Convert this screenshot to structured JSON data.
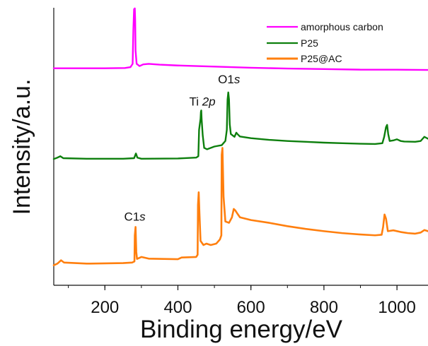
{
  "chart_data": {
    "type": "line",
    "title": "",
    "xlabel": "Binding energy/eV",
    "ylabel": "Intensity/a.u.",
    "xlim": [
      60,
      1085
    ],
    "ylim": [
      0,
      10
    ],
    "grid": false,
    "legend_position": "top-right",
    "x_ticks": [
      200,
      400,
      600,
      800,
      1000
    ],
    "x_tick_labels": [
      "200",
      "400",
      "600",
      "800",
      "1000"
    ],
    "series": [
      {
        "name": "amorphous carbon",
        "color": "#ff00ff",
        "points": [
          [
            60,
            7.82
          ],
          [
            200,
            7.82
          ],
          [
            255,
            7.83
          ],
          [
            270,
            7.86
          ],
          [
            276,
            7.98
          ],
          [
            278,
            9.2
          ],
          [
            280,
            9.95
          ],
          [
            281,
            9.72
          ],
          [
            282,
            9.98
          ],
          [
            283,
            9.55
          ],
          [
            284,
            8.45
          ],
          [
            287,
            7.98
          ],
          [
            295,
            7.9
          ],
          [
            305,
            7.96
          ],
          [
            320,
            7.98
          ],
          [
            350,
            7.95
          ],
          [
            400,
            7.92
          ],
          [
            500,
            7.88
          ],
          [
            600,
            7.84
          ],
          [
            700,
            7.81
          ],
          [
            800,
            7.79
          ],
          [
            900,
            7.77
          ],
          [
            1000,
            7.77
          ],
          [
            1085,
            7.76
          ]
        ]
      },
      {
        "name": "P25",
        "color": "#0d7f0d",
        "points": [
          [
            60,
            4.55
          ],
          [
            70,
            4.6
          ],
          [
            78,
            4.65
          ],
          [
            86,
            4.58
          ],
          [
            150,
            4.56
          ],
          [
            250,
            4.56
          ],
          [
            280,
            4.58
          ],
          [
            285,
            4.75
          ],
          [
            289,
            4.6
          ],
          [
            300,
            4.56
          ],
          [
            400,
            4.57
          ],
          [
            450,
            4.6
          ],
          [
            456,
            4.65
          ],
          [
            458,
            5.6
          ],
          [
            459,
            5.7
          ],
          [
            462,
            6.0
          ],
          [
            463,
            6.25
          ],
          [
            464,
            6.3
          ],
          [
            465,
            5.98
          ],
          [
            468,
            5.4
          ],
          [
            472,
            4.95
          ],
          [
            480,
            4.9
          ],
          [
            500,
            5.0
          ],
          [
            520,
            5.05
          ],
          [
            530,
            5.2
          ],
          [
            534,
            5.6
          ],
          [
            536,
            6.7
          ],
          [
            538,
            6.95
          ],
          [
            540,
            6.7
          ],
          [
            542,
            5.8
          ],
          [
            545,
            5.45
          ],
          [
            555,
            5.35
          ],
          [
            560,
            5.5
          ],
          [
            563,
            5.45
          ],
          [
            570,
            5.36
          ],
          [
            600,
            5.3
          ],
          [
            650,
            5.24
          ],
          [
            700,
            5.2
          ],
          [
            750,
            5.17
          ],
          [
            800,
            5.14
          ],
          [
            850,
            5.12
          ],
          [
            900,
            5.1
          ],
          [
            940,
            5.09
          ],
          [
            960,
            5.12
          ],
          [
            965,
            5.35
          ],
          [
            970,
            5.7
          ],
          [
            973,
            5.78
          ],
          [
            976,
            5.45
          ],
          [
            980,
            5.2
          ],
          [
            990,
            5.22
          ],
          [
            1000,
            5.26
          ],
          [
            1010,
            5.2
          ],
          [
            1020,
            5.18
          ],
          [
            1050,
            5.17
          ],
          [
            1065,
            5.2
          ],
          [
            1075,
            5.35
          ],
          [
            1085,
            5.28
          ]
        ]
      },
      {
        "name": "P25@AC",
        "color": "#ff7f0e",
        "points": [
          [
            60,
            0.72
          ],
          [
            70,
            0.78
          ],
          [
            80,
            0.9
          ],
          [
            88,
            0.82
          ],
          [
            150,
            0.78
          ],
          [
            250,
            0.8
          ],
          [
            275,
            0.82
          ],
          [
            281,
            0.86
          ],
          [
            282,
            1.8
          ],
          [
            284,
            2.1
          ],
          [
            286,
            1.2
          ],
          [
            288,
            0.95
          ],
          [
            300,
            1.02
          ],
          [
            320,
            0.96
          ],
          [
            400,
            0.94
          ],
          [
            410,
            1.0
          ],
          [
            450,
            1.02
          ],
          [
            454,
            1.1
          ],
          [
            455,
            2.9
          ],
          [
            457,
            3.35
          ],
          [
            459,
            2.6
          ],
          [
            462,
            1.6
          ],
          [
            470,
            1.45
          ],
          [
            478,
            1.5
          ],
          [
            490,
            1.45
          ],
          [
            505,
            1.5
          ],
          [
            515,
            1.65
          ],
          [
            519,
            1.8
          ],
          [
            520,
            4.7
          ],
          [
            522,
            4.95
          ],
          [
            525,
            3.2
          ],
          [
            530,
            2.3
          ],
          [
            540,
            2.25
          ],
          [
            548,
            2.45
          ],
          [
            553,
            2.75
          ],
          [
            557,
            2.7
          ],
          [
            562,
            2.6
          ],
          [
            570,
            2.45
          ],
          [
            600,
            2.35
          ],
          [
            650,
            2.25
          ],
          [
            700,
            2.13
          ],
          [
            750,
            2.03
          ],
          [
            800,
            1.95
          ],
          [
            850,
            1.88
          ],
          [
            900,
            1.83
          ],
          [
            940,
            1.8
          ],
          [
            958,
            1.82
          ],
          [
            962,
            2.1
          ],
          [
            966,
            2.55
          ],
          [
            970,
            2.4
          ],
          [
            975,
            1.95
          ],
          [
            990,
            1.98
          ],
          [
            1010,
            1.92
          ],
          [
            1030,
            1.88
          ],
          [
            1050,
            1.86
          ],
          [
            1065,
            1.9
          ],
          [
            1075,
            1.99
          ],
          [
            1085,
            1.95
          ]
        ]
      }
    ],
    "annotations": [
      {
        "text_main": "C1",
        "text_italic": "s",
        "x": 281,
        "y": 10.33
      },
      {
        "text_main": "Ti ",
        "text_italic": "2p",
        "x": 467,
        "y": 6.48
      },
      {
        "text_main": "O1",
        "text_italic": "s",
        "x": 540,
        "y": 7.28
      },
      {
        "text_main": "C1",
        "text_italic": "s",
        "x": 282,
        "y": 2.33
      }
    ]
  }
}
